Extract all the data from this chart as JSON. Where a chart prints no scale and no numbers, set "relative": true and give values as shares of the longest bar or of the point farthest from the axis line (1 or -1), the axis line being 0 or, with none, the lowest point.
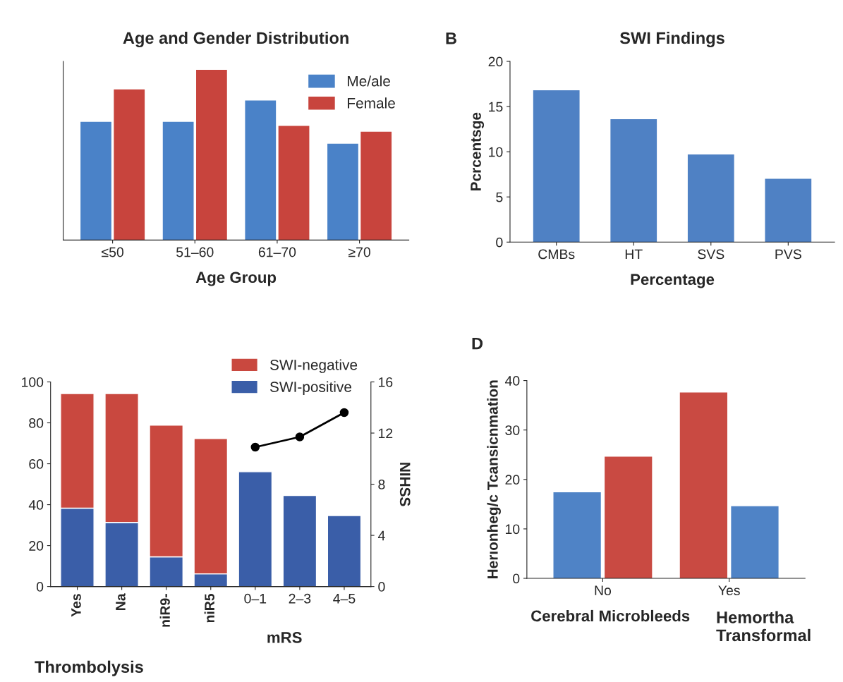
{
  "chart_data": [
    {
      "type": "bar",
      "title": "Age and Gender Distribution",
      "xlabel": "Age Group",
      "relative": true,
      "legend": "top right",
      "categories": [
        "≤50",
        "51–60",
        "61–70",
        "≥70"
      ],
      "series": [
        {
          "name": "Me/ale",
          "color": "#4a82c8",
          "values": [
            0.695,
            0.695,
            0.82,
            0.566
          ]
        },
        {
          "name": "Female",
          "color": "#c8443d",
          "values": [
            0.885,
            1,
            0.671,
            0.637
          ]
        }
      ]
    },
    {
      "type": "bar",
      "title": "SWI Findings",
      "xlabel": "Percentage",
      "ylabel": "Pcrcentsge",
      "annotations": [
        "B"
      ],
      "categories": [
        "CMBs",
        "HT",
        "SVS",
        "PVS"
      ],
      "ylim": [
        0,
        20
      ],
      "yticks": [
        0,
        5,
        10,
        15,
        20
      ],
      "series": [
        {
          "color": "#4f81c4",
          "values": [
            16.8,
            13.6,
            9.7,
            7.0
          ]
        }
      ]
    },
    {
      "type": "bar",
      "stacked": true,
      "xlabel": "mRS",
      "y2label": "NIHSS",
      "annotations": [
        "Thrombolysis"
      ],
      "legend": "top right",
      "categories": [
        "Yes",
        "Na",
        "niR9-",
        "niR5",
        "0–1",
        "2–3",
        "4–5"
      ],
      "ylim": [
        0,
        100
      ],
      "yticks": [
        0,
        20,
        40,
        60,
        80,
        100
      ],
      "y2lim": [
        0,
        16
      ],
      "y2ticks": [
        0,
        4,
        8,
        12,
        16
      ],
      "series": [
        {
          "name": "SWI-positive",
          "color": "#3a5ea8",
          "values": [
            38.3,
            31.3,
            14.5,
            6.2,
            56.1,
            44.5,
            34.7
          ]
        },
        {
          "name": "SWI-negative",
          "color": "#c9483f",
          "values": [
            56.0,
            63.0,
            64.4,
            66.1,
            null,
            null,
            null
          ]
        },
        {
          "type": "line",
          "axis": "y2",
          "color": "#000000",
          "marker": "circle",
          "values": [
            null,
            null,
            null,
            null,
            10.9,
            11.7,
            13.6
          ]
        }
      ]
    },
    {
      "type": "bar",
      "xlabel": "Cerebral Microbleeds",
      "ylabel": "Herıonheg/c Tcansicnmation",
      "annotations": [
        "D",
        "Hemortha\nTransformal"
      ],
      "categories": [
        "No",
        "Yes"
      ],
      "ylim": [
        0,
        40
      ],
      "yticks": [
        0,
        10,
        20,
        30,
        40
      ],
      "series": [
        {
          "colors": [
            "#4f83c6",
            "#c94a42"
          ],
          "values": [
            17.4,
            37.6
          ]
        },
        {
          "colors": [
            "#c94a42",
            "#4f83c6"
          ],
          "values": [
            24.6,
            14.6
          ]
        }
      ]
    }
  ]
}
